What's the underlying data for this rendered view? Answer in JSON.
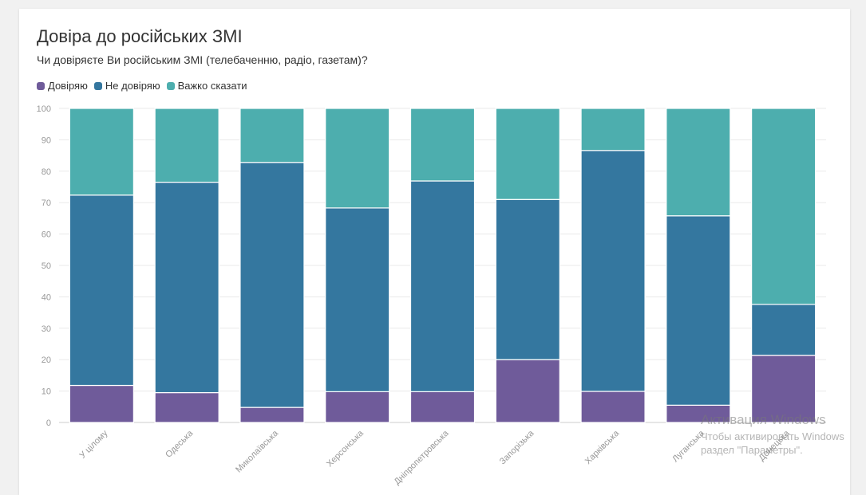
{
  "chart_data": {
    "type": "bar",
    "stacked": true,
    "title": "Довіра до російських ЗМІ",
    "subtitle": "Чи довіряєте Ви російським ЗМІ (телебаченню, радіо, газетам)?",
    "categories": [
      "У цілому",
      "Одеська",
      "Миколаївська",
      "Херсонська",
      "Дніпропетровська",
      "Запорізька",
      "Харківська",
      "Луганська",
      "Донецька"
    ],
    "series": [
      {
        "name": "Довіряю",
        "color": "#6f5b9a",
        "values": [
          11.8,
          9.5,
          4.8,
          9.8,
          9.8,
          20.0,
          9.9,
          5.5,
          21.4
        ]
      },
      {
        "name": "Не довіряю",
        "color": "#34779f",
        "values": [
          60.6,
          67.0,
          78.0,
          58.5,
          67.1,
          51.0,
          76.7,
          60.3,
          16.2
        ]
      },
      {
        "name": "Важко сказати",
        "color": "#4daeae",
        "values": [
          27.6,
          23.5,
          17.2,
          31.7,
          23.1,
          29.0,
          13.4,
          34.2,
          62.4
        ]
      }
    ],
    "ylim": [
      0,
      100
    ],
    "yticks": [
      0,
      10,
      20,
      30,
      40,
      50,
      60,
      70,
      80,
      90,
      100
    ],
    "grid": true,
    "legend": "top-left"
  },
  "watermark": {
    "line1": "Активация Windows",
    "line2": "Чтобы активировать Windows",
    "line3": "раздел \"Параметры\"."
  }
}
